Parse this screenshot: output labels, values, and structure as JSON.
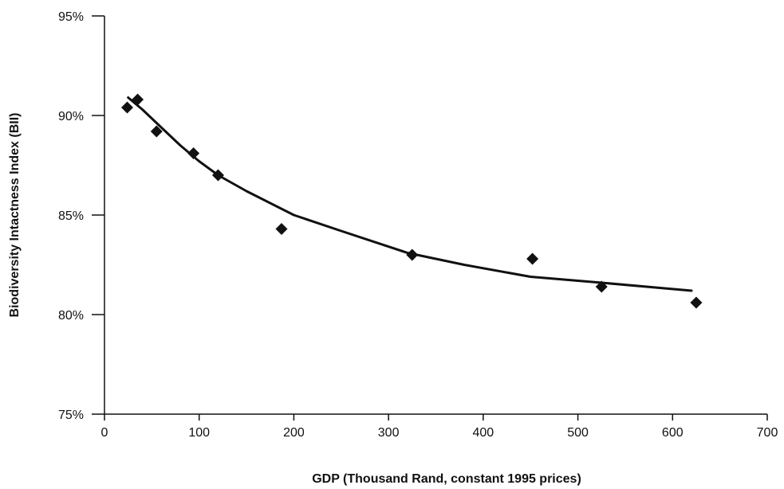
{
  "chart_data": {
    "type": "scatter",
    "title": "",
    "xlabel": "GDP (Thousand Rand, constant 1995 prices)",
    "ylabel": "Biodiversity Intactness Index (BII)",
    "xlim": [
      0,
      700
    ],
    "ylim": [
      75,
      95
    ],
    "x_ticks": [
      0,
      100,
      200,
      300,
      400,
      500,
      600,
      700
    ],
    "x_tick_labels": [
      "0",
      "100",
      "200",
      "300",
      "400",
      "500",
      "600",
      "700"
    ],
    "y_ticks": [
      75,
      80,
      85,
      90,
      95
    ],
    "y_tick_labels": [
      "75%",
      "80%",
      "85%",
      "90%",
      "95%"
    ],
    "grid": false,
    "legend": "none",
    "colors": {
      "axis": "#111111",
      "marker": "#111111",
      "trend": "#111111"
    },
    "series": [
      {
        "kind": "points",
        "marker": "diamond",
        "x": [
          24,
          35,
          55,
          94,
          120,
          187,
          325,
          452,
          525,
          625
        ],
        "y": [
          90.4,
          90.8,
          89.2,
          88.1,
          87.0,
          84.3,
          83.0,
          82.8,
          81.4,
          80.6
        ]
      },
      {
        "kind": "trend",
        "x": [
          25,
          40,
          60,
          80,
          100,
          120,
          150,
          200,
          250,
          320,
          380,
          450,
          525,
          620
        ],
        "y": [
          90.9,
          90.3,
          89.4,
          88.5,
          87.7,
          87.0,
          86.2,
          85.0,
          84.2,
          83.1,
          82.5,
          81.9,
          81.6,
          81.2
        ]
      }
    ]
  }
}
